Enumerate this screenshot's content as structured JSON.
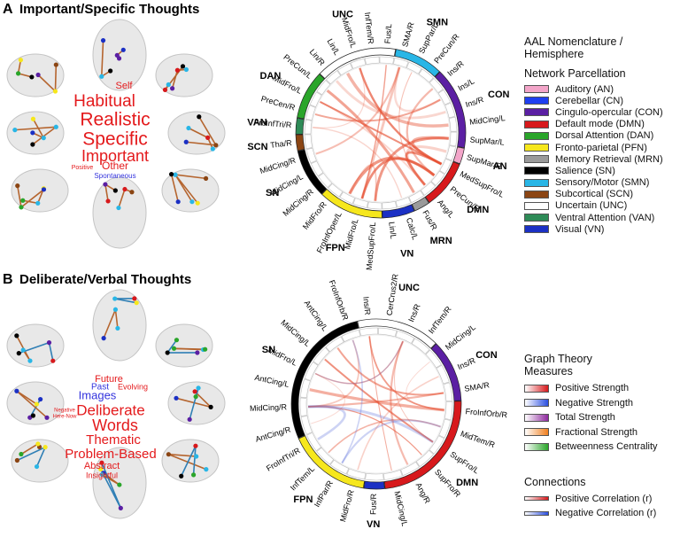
{
  "panels": [
    {
      "letter": "A",
      "title": "Important/Specific Thoughts",
      "word_cloud": [
        "Self",
        "Habitual",
        "Realistic",
        "Specific",
        "Important",
        "Positive",
        "Other",
        "Spontaneous"
      ],
      "chord": {
        "networks": [
          {
            "label": "UNC",
            "color": "#ffffff",
            "nodes": [
              "Lin/R",
              "Lin/L",
              "MidFro/L",
              "InfTem/R",
              "Fus/L"
            ]
          },
          {
            "label": "SMN",
            "color": "#29b6e6",
            "nodes": [
              "SMA/R",
              "SupPar/L",
              "PreCun/R"
            ]
          },
          {
            "label": "CON",
            "color": "#5b1fa3",
            "nodes": [
              "Ins/R",
              "Ins/L",
              "Ins/R",
              "MidCing/L",
              "SupMar/L"
            ]
          },
          {
            "label": "AN",
            "color": "#f3a5c9",
            "nodes": [
              "SupMar/R"
            ]
          },
          {
            "label": "DMN",
            "color": "#d7191c",
            "nodes": [
              "MedSupFro/L",
              "PreCun/R",
              "Ang/L"
            ]
          },
          {
            "label": "MRN",
            "color": "#9a9a9a",
            "nodes": [
              "Fus/R"
            ]
          },
          {
            "label": "VN",
            "color": "#1b30c4",
            "nodes": [
              "Calc/L",
              "Lin/L"
            ]
          },
          {
            "label": "FPN",
            "color": "#f6e71c",
            "nodes": [
              "MedSupFro/L",
              "MidFro/L",
              "FroInfOper/L",
              "MidFro/R"
            ]
          },
          {
            "label": "SN",
            "color": "#000000",
            "nodes": [
              "MidCing/R",
              "MidCing/L",
              "MidCing/R"
            ]
          },
          {
            "label": "SCN",
            "color": "#8b4513",
            "nodes": [
              "Tha/R"
            ]
          },
          {
            "label": "VAN",
            "color": "#2e8b57",
            "nodes": [
              "FroInfTri/R"
            ]
          },
          {
            "label": "DAN",
            "color": "#2aa52a",
            "nodes": [
              "PreCen/R",
              "MidFro/L",
              "PreCun/L"
            ]
          }
        ]
      },
      "legend": {
        "sections": [
          {
            "heading": "AAL Nomenclature / Hemisphere",
            "items": []
          },
          {
            "heading": "Network Parcellation",
            "items": [
              {
                "label": "Auditory (AN)",
                "color": "#f3a5c9"
              },
              {
                "label": "Cerebellar (CN)",
                "color": "#1f3ff0"
              },
              {
                "label": "Cingulo-opercular (CON)",
                "color": "#5b1fa3"
              },
              {
                "label": "Default mode (DMN)",
                "color": "#d7191c"
              },
              {
                "label": "Dorsal Attention (DAN)",
                "color": "#2aa52a"
              },
              {
                "label": "Fronto-parietal (PFN)",
                "color": "#f6e71c"
              },
              {
                "label": "Memory Retrieval (MRN)",
                "color": "#9a9a9a"
              },
              {
                "label": "Salience (SN)",
                "color": "#000000"
              },
              {
                "label": "Sensory/Motor (SMN)",
                "color": "#29b6e6"
              },
              {
                "label": "Subcortical (SCN)",
                "color": "#8b4513"
              },
              {
                "label": "Uncertain (UNC)",
                "color": "#ffffff"
              },
              {
                "label": "Ventral Attention (VAN)",
                "color": "#2e8b57"
              },
              {
                "label": "Visual (VN)",
                "color": "#1b30c4"
              }
            ]
          }
        ]
      }
    },
    {
      "letter": "B",
      "title": "Deliberate/Verbal Thoughts",
      "word_cloud": [
        "Future",
        "Past",
        "Evolving",
        "Images",
        "Deliberate",
        "Negative",
        "Here-Now",
        "Words",
        "Thematic",
        "Problem-Based",
        "Abstract",
        "Insightful"
      ],
      "chord": {
        "networks": [
          {
            "label": "UNC",
            "color": "#ffffff",
            "nodes": [
              "Ins/R",
              "CerCrus2/R",
              "Ins/R",
              "InfTem/R"
            ]
          },
          {
            "label": "CON",
            "color": "#5b1fa3",
            "nodes": [
              "MidCing/L",
              "Ins/R",
              "SMA/R"
            ]
          },
          {
            "label": "DMN",
            "color": "#d7191c",
            "nodes": [
              "FroInfOrb/R",
              "MidTem/R",
              "SupFro/L",
              "SupFro/R",
              "Ang/R",
              "MidCing/L"
            ]
          },
          {
            "label": "VN",
            "color": "#1b30c4",
            "nodes": [
              "Fus/R"
            ]
          },
          {
            "label": "FPN",
            "color": "#f6e71c",
            "nodes": [
              "MidFro/R",
              "InfPar/R",
              "InfTem/L",
              "FroInfTri/R"
            ]
          },
          {
            "label": "SN",
            "color": "#000000",
            "nodes": [
              "AntCing/R",
              "MidCing/R",
              "AntCing/L",
              "MidFro/L",
              "MidCing/L",
              "AntCing/L",
              "FroInfOrb/R"
            ]
          }
        ]
      },
      "legend": {
        "sections": [
          {
            "heading": "Graph Theory Measures",
            "items": [
              {
                "label": "Positive Strength",
                "color": "#d7191c"
              },
              {
                "label": "Negative Strength",
                "color": "#2b4fe0"
              },
              {
                "label": "Total Strength",
                "color": "#8e2a9e"
              },
              {
                "label": "Fractional Strength",
                "color": "#f07f1e"
              },
              {
                "label": "Betweenness Centrality",
                "color": "#2aa52a"
              }
            ]
          },
          {
            "heading": "Connections",
            "items": [
              {
                "label": "Positive Correlation (r)",
                "color": "#d7191c"
              },
              {
                "label": "Negative Correlation (r)",
                "color": "#2b4fe0"
              }
            ]
          }
        ]
      }
    }
  ]
}
